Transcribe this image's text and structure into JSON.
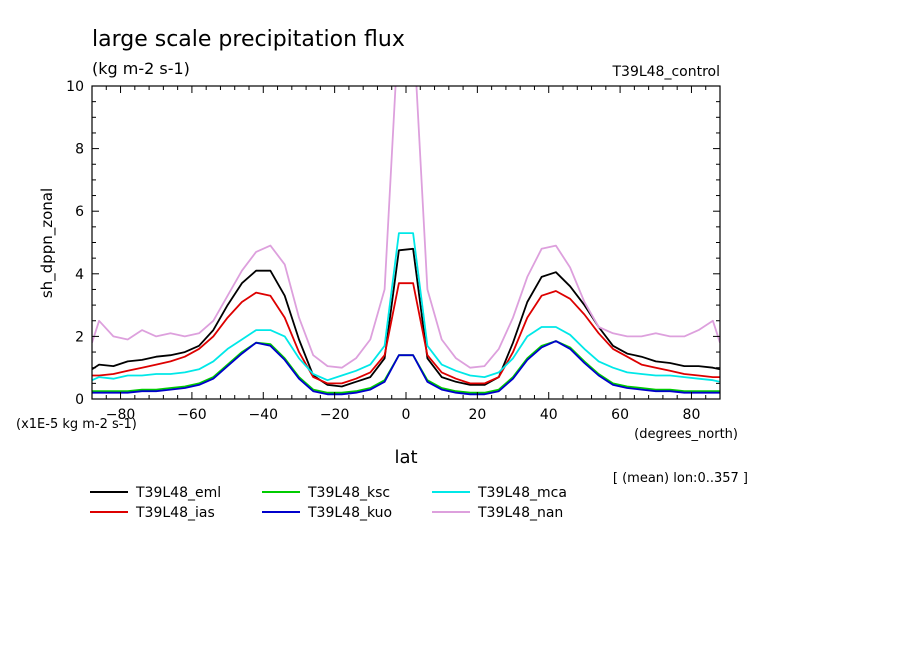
{
  "title": "large scale precipitation flux",
  "units": "(kg m-2 s-1)",
  "experiment": "T39L48_control",
  "ylabel": "sh_dppn_zonal",
  "xlabel": "lat",
  "xunits": "(degrees_north)",
  "yscale_note": "(x1E-5 kg m-2 s-1)",
  "mean_note": "[ (mean) lon:0..357 ]",
  "chart_data": {
    "type": "line",
    "title": "large scale precipitation flux",
    "xlabel": "lat",
    "ylabel": "sh_dppn_zonal",
    "xlim": [
      -88,
      88
    ],
    "ylim": [
      0,
      10
    ],
    "xticks": [
      -80,
      -60,
      -40,
      -20,
      0,
      20,
      40,
      60,
      80
    ],
    "yticks": [
      0,
      2,
      4,
      6,
      8,
      10
    ],
    "x": [
      -88,
      -86,
      -82,
      -78,
      -74,
      -70,
      -66,
      -62,
      -58,
      -54,
      -50,
      -46,
      -42,
      -38,
      -34,
      -30,
      -26,
      -22,
      -18,
      -14,
      -10,
      -6,
      -2,
      2,
      6,
      10,
      14,
      18,
      22,
      26,
      30,
      34,
      38,
      42,
      46,
      50,
      54,
      58,
      62,
      66,
      70,
      74,
      78,
      82,
      86,
      88
    ],
    "series": [
      {
        "name": "T39L48_eml",
        "color": "#000000",
        "values": [
          0.95,
          1.1,
          1.05,
          1.2,
          1.25,
          1.35,
          1.4,
          1.5,
          1.7,
          2.2,
          3.0,
          3.7,
          4.1,
          4.1,
          3.3,
          1.9,
          0.75,
          0.45,
          0.4,
          0.55,
          0.7,
          1.3,
          4.75,
          4.8,
          1.3,
          0.7,
          0.55,
          0.45,
          0.45,
          0.7,
          1.8,
          3.1,
          3.9,
          4.05,
          3.6,
          3.0,
          2.3,
          1.7,
          1.45,
          1.35,
          1.2,
          1.15,
          1.05,
          1.05,
          1.0,
          0.95
        ]
      },
      {
        "name": "T39L48_ias",
        "color": "#dd0000",
        "values": [
          0.75,
          0.75,
          0.8,
          0.9,
          1.0,
          1.1,
          1.2,
          1.35,
          1.6,
          2.0,
          2.6,
          3.1,
          3.4,
          3.3,
          2.6,
          1.5,
          0.7,
          0.5,
          0.5,
          0.65,
          0.85,
          1.4,
          3.7,
          3.7,
          1.4,
          0.85,
          0.65,
          0.5,
          0.5,
          0.7,
          1.5,
          2.6,
          3.3,
          3.45,
          3.2,
          2.7,
          2.1,
          1.6,
          1.35,
          1.1,
          1.0,
          0.9,
          0.8,
          0.75,
          0.7,
          0.7
        ]
      },
      {
        "name": "T39L48_ksc",
        "color": "#00cc00",
        "values": [
          0.25,
          0.25,
          0.25,
          0.25,
          0.3,
          0.3,
          0.35,
          0.4,
          0.5,
          0.7,
          1.1,
          1.5,
          1.8,
          1.75,
          1.3,
          0.7,
          0.3,
          0.2,
          0.2,
          0.25,
          0.35,
          0.6,
          1.4,
          1.4,
          0.6,
          0.35,
          0.25,
          0.2,
          0.2,
          0.3,
          0.7,
          1.3,
          1.7,
          1.85,
          1.65,
          1.2,
          0.8,
          0.5,
          0.4,
          0.35,
          0.3,
          0.3,
          0.25,
          0.25,
          0.25,
          0.25
        ]
      },
      {
        "name": "T39L48_kuo",
        "color": "#0000cc",
        "values": [
          0.2,
          0.2,
          0.2,
          0.2,
          0.25,
          0.25,
          0.3,
          0.35,
          0.45,
          0.65,
          1.05,
          1.45,
          1.8,
          1.7,
          1.25,
          0.65,
          0.25,
          0.15,
          0.15,
          0.2,
          0.3,
          0.55,
          1.4,
          1.4,
          0.55,
          0.3,
          0.2,
          0.15,
          0.15,
          0.25,
          0.65,
          1.25,
          1.65,
          1.85,
          1.6,
          1.15,
          0.75,
          0.45,
          0.35,
          0.3,
          0.25,
          0.25,
          0.2,
          0.2,
          0.2,
          0.2
        ]
      },
      {
        "name": "T39L48_mca",
        "color": "#00e8e8",
        "values": [
          0.6,
          0.7,
          0.65,
          0.75,
          0.75,
          0.8,
          0.8,
          0.85,
          0.95,
          1.2,
          1.6,
          1.9,
          2.2,
          2.2,
          2.0,
          1.3,
          0.8,
          0.6,
          0.75,
          0.9,
          1.1,
          1.7,
          5.3,
          5.3,
          1.7,
          1.1,
          0.9,
          0.75,
          0.7,
          0.85,
          1.3,
          2.0,
          2.3,
          2.3,
          2.05,
          1.6,
          1.2,
          1.0,
          0.85,
          0.8,
          0.75,
          0.75,
          0.7,
          0.65,
          0.6,
          0.55
        ]
      },
      {
        "name": "T39L48_nan",
        "color": "#dda0dd",
        "values": [
          1.8,
          2.5,
          2.0,
          1.9,
          2.2,
          2.0,
          2.1,
          2.0,
          2.1,
          2.5,
          3.3,
          4.1,
          4.7,
          4.9,
          4.3,
          2.6,
          1.4,
          1.05,
          1.0,
          1.3,
          1.9,
          3.5,
          12.0,
          12.0,
          3.5,
          1.9,
          1.3,
          1.0,
          1.05,
          1.6,
          2.6,
          3.9,
          4.8,
          4.9,
          4.2,
          3.1,
          2.3,
          2.1,
          2.0,
          2.0,
          2.1,
          2.0,
          2.0,
          2.2,
          2.5,
          1.8
        ]
      }
    ]
  }
}
